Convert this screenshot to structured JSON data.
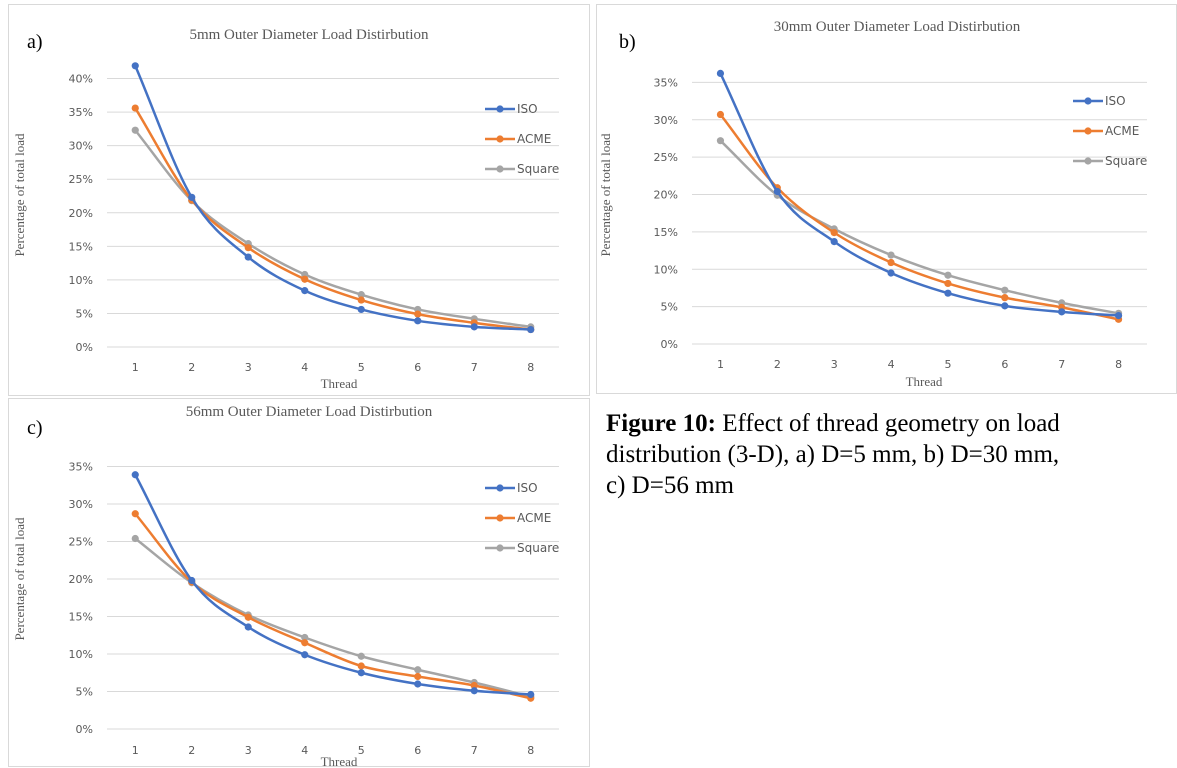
{
  "caption": {
    "label": "Figure 10:",
    "line1": " Effect of thread geometry on load",
    "line2": "distribution (3-D), a) D=5 mm, b) D=30 mm,",
    "line3": "c) D=56 mm"
  },
  "colors": {
    "ISO": "#4472c4",
    "ACME": "#ed7d31",
    "Square": "#a5a5a5",
    "grid": "#d9d9d9",
    "text": "#595959"
  },
  "chart_data": [
    {
      "panel": "a)",
      "type": "line",
      "title": "5mm Outer Diameter Load Distirbution",
      "xlabel": "Thread",
      "ylabel": "Percentage of total load",
      "categories": [
        "1",
        "2",
        "3",
        "4",
        "5",
        "6",
        "7",
        "8"
      ],
      "ylim": [
        0,
        45
      ],
      "yticks": [
        "0%",
        "5%",
        "10%",
        "15%",
        "20%",
        "25%",
        "30%",
        "35%",
        "40%"
      ],
      "ytick_values": [
        0,
        5,
        10,
        15,
        20,
        25,
        30,
        35,
        40
      ],
      "grid": true,
      "legend_position": "right",
      "series": [
        {
          "name": "ISO",
          "values": [
            41.9,
            22.3,
            13.4,
            8.4,
            5.6,
            3.9,
            3.0,
            2.6
          ]
        },
        {
          "name": "ACME",
          "values": [
            35.6,
            21.9,
            14.8,
            10.1,
            7.0,
            4.9,
            3.6,
            2.6
          ]
        },
        {
          "name": "Square",
          "values": [
            32.3,
            21.8,
            15.4,
            10.8,
            7.8,
            5.6,
            4.2,
            3.0
          ]
        }
      ]
    },
    {
      "panel": "b)",
      "type": "line",
      "title": "30mm Outer Diameter Load Distirbution",
      "xlabel": "Thread",
      "ylabel": "Percentage of total load",
      "categories": [
        "1",
        "2",
        "3",
        "4",
        "5",
        "6",
        "7",
        "8"
      ],
      "ylim": [
        0,
        40
      ],
      "yticks": [
        "0%",
        "5%",
        "10%",
        "15%",
        "20%",
        "25%",
        "30%",
        "35%"
      ],
      "ytick_values": [
        0,
        5,
        10,
        15,
        20,
        25,
        30,
        35
      ],
      "grid": true,
      "legend_position": "right",
      "series": [
        {
          "name": "ISO",
          "values": [
            36.2,
            20.4,
            13.7,
            9.5,
            6.8,
            5.1,
            4.3,
            3.8
          ]
        },
        {
          "name": "ACME",
          "values": [
            30.7,
            20.9,
            14.9,
            10.9,
            8.1,
            6.2,
            4.9,
            3.3
          ]
        },
        {
          "name": "Square",
          "values": [
            27.2,
            19.9,
            15.4,
            11.9,
            9.2,
            7.2,
            5.5,
            4.1
          ]
        }
      ]
    },
    {
      "panel": "c)",
      "type": "line",
      "title": "56mm Outer Diameter Load Distirbution",
      "xlabel": "Thread",
      "ylabel": "Percentage of total load",
      "categories": [
        "1",
        "2",
        "3",
        "4",
        "5",
        "6",
        "7",
        "8"
      ],
      "ylim": [
        0,
        40
      ],
      "yticks": [
        "0%",
        "5%",
        "10%",
        "15%",
        "20%",
        "25%",
        "30%",
        "35%"
      ],
      "ytick_values": [
        0,
        5,
        10,
        15,
        20,
        25,
        30,
        35
      ],
      "grid": true,
      "legend_position": "right",
      "series": [
        {
          "name": "ISO",
          "values": [
            33.9,
            19.8,
            13.6,
            9.9,
            7.5,
            6.0,
            5.1,
            4.6
          ]
        },
        {
          "name": "ACME",
          "values": [
            28.7,
            19.6,
            14.9,
            11.5,
            8.4,
            7.0,
            5.8,
            4.1
          ]
        },
        {
          "name": "Square",
          "values": [
            25.4,
            19.5,
            15.2,
            12.2,
            9.7,
            7.9,
            6.2,
            4.3
          ]
        }
      ]
    }
  ]
}
